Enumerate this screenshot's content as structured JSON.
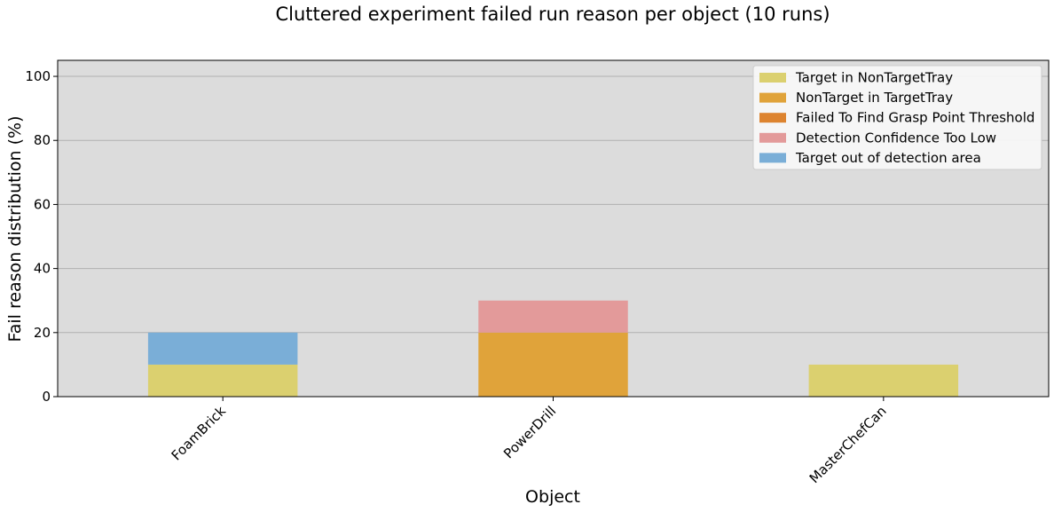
{
  "chart_data": {
    "type": "bar",
    "stacked": true,
    "title": "Cluttered experiment failed run reason per object (10 runs)",
    "xlabel": "Object",
    "ylabel": "Fail reason distribution (%)",
    "categories": [
      "FoamBrick",
      "PowerDrill",
      "MasterChefCan"
    ],
    "ylim": [
      0,
      105
    ],
    "yticks": [
      0,
      20,
      40,
      60,
      80,
      100
    ],
    "grid": "y",
    "background": "#dcdcdc",
    "legend_position": "top-right",
    "series": [
      {
        "name": "Target in NonTargetTray",
        "color": "#dbd06f",
        "values": [
          10,
          0,
          10
        ]
      },
      {
        "name": "NonTarget in TargetTray",
        "color": "#e0a33a",
        "values": [
          0,
          20,
          0
        ]
      },
      {
        "name": "Failed To Find Grasp Point Threshold",
        "color": "#dd8430",
        "values": [
          0,
          0,
          0
        ]
      },
      {
        "name": "Detection Confidence Too Low",
        "color": "#e39a9a",
        "values": [
          0,
          10,
          0
        ]
      },
      {
        "name": "Target out of detection area",
        "color": "#7aaed7",
        "values": [
          10,
          0,
          0
        ]
      }
    ]
  }
}
